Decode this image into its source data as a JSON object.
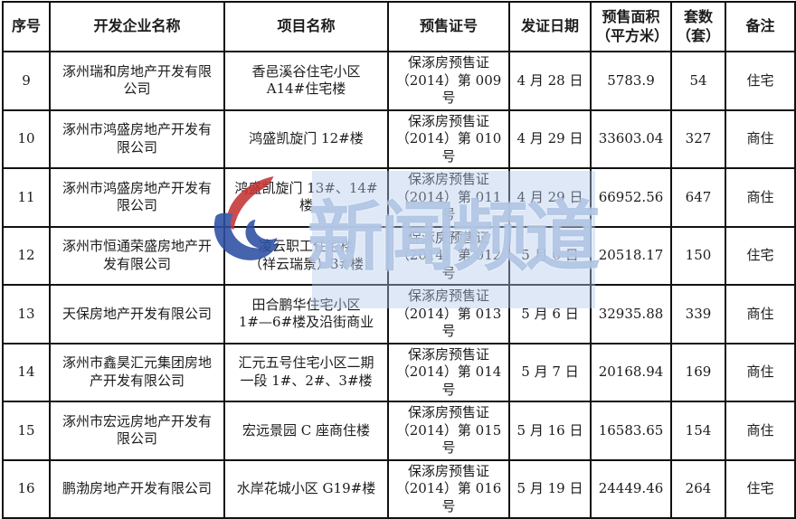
{
  "table": {
    "headers": [
      "序号",
      "开发企业名称",
      "项目名称",
      "预售证号",
      "发证日期",
      "预售面积\n（平方米）",
      "套数\n（套）",
      "备注"
    ],
    "column_keys": [
      "index",
      "developer",
      "project",
      "permit_no",
      "issue_date",
      "area",
      "units",
      "remark"
    ],
    "rows": [
      [
        "9",
        "涿州瑞和房地产开发有限\n公司",
        "香邑溪谷住宅小区\nA14#住宅楼",
        "保涿房预售证\n（2014）第 009 号",
        "4 月 28 日",
        "5783.9",
        "54",
        "住宅"
      ],
      [
        "10",
        "涿州市鸿盛房地产开发有\n限公司",
        "鸿盛凯旋门 12#楼",
        "保涿房预售证\n（2014）第 010 号",
        "4 月 29 日",
        "33603.04",
        "327",
        "商住"
      ],
      [
        "11",
        "涿州市鸿盛房地产开发有\n限公司",
        "鸿盛凯旋门 13#、14#楼",
        "保涿房预售证\n（2014）第 011 号",
        "4 月 29 日",
        "66952.56",
        "647",
        "商住"
      ],
      [
        "12",
        "涿州市恒通荣盛房地产开\n发有限公司",
        "凌云职工住宅楼\n（祥云瑞景）3#楼",
        "保涿房预售证\n（2014）第 012 号",
        "5 月 6 日",
        "20518.17",
        "150",
        "住宅"
      ],
      [
        "13",
        "天保房地产开发有限公司",
        "田合鹏华住宅小区\n1#—6#楼及沿街商业",
        "保涿房预售证\n（2014）第 013 号",
        "5 月 6 日",
        "32935.88",
        "339",
        "商住"
      ],
      [
        "14",
        "涿州市鑫昊汇元集团房地\n产开发有限公司",
        "汇元五号住宅小区二期\n一段 1#、2#、3#楼",
        "保涿房预售证\n（2014）第 014 号",
        "5 月 7 日",
        "20168.94",
        "169",
        "商住"
      ],
      [
        "15",
        "涿州市宏远房地产开发有\n限公司",
        "宏远景园 C 座商住楼",
        "保涿房预售证\n（2014）第 015 号",
        "5 月 16 日",
        "16583.65",
        "154",
        "商住"
      ],
      [
        "16",
        "鹏渤房地产开发有限公司",
        "水岸花城小区 G19#楼",
        "保涿房预售证\n（2014）第 016 号",
        "5 月 19 日",
        "24449.46",
        "264",
        "住宅"
      ]
    ]
  },
  "watermark": {
    "text": "新闻频道",
    "logo": "flame-swoosh-logo",
    "logo_red": "#c43434",
    "logo_blue": "#2c4fa2",
    "text_color": "#82a2d4",
    "backdrop_color": "#b0c7ec"
  }
}
